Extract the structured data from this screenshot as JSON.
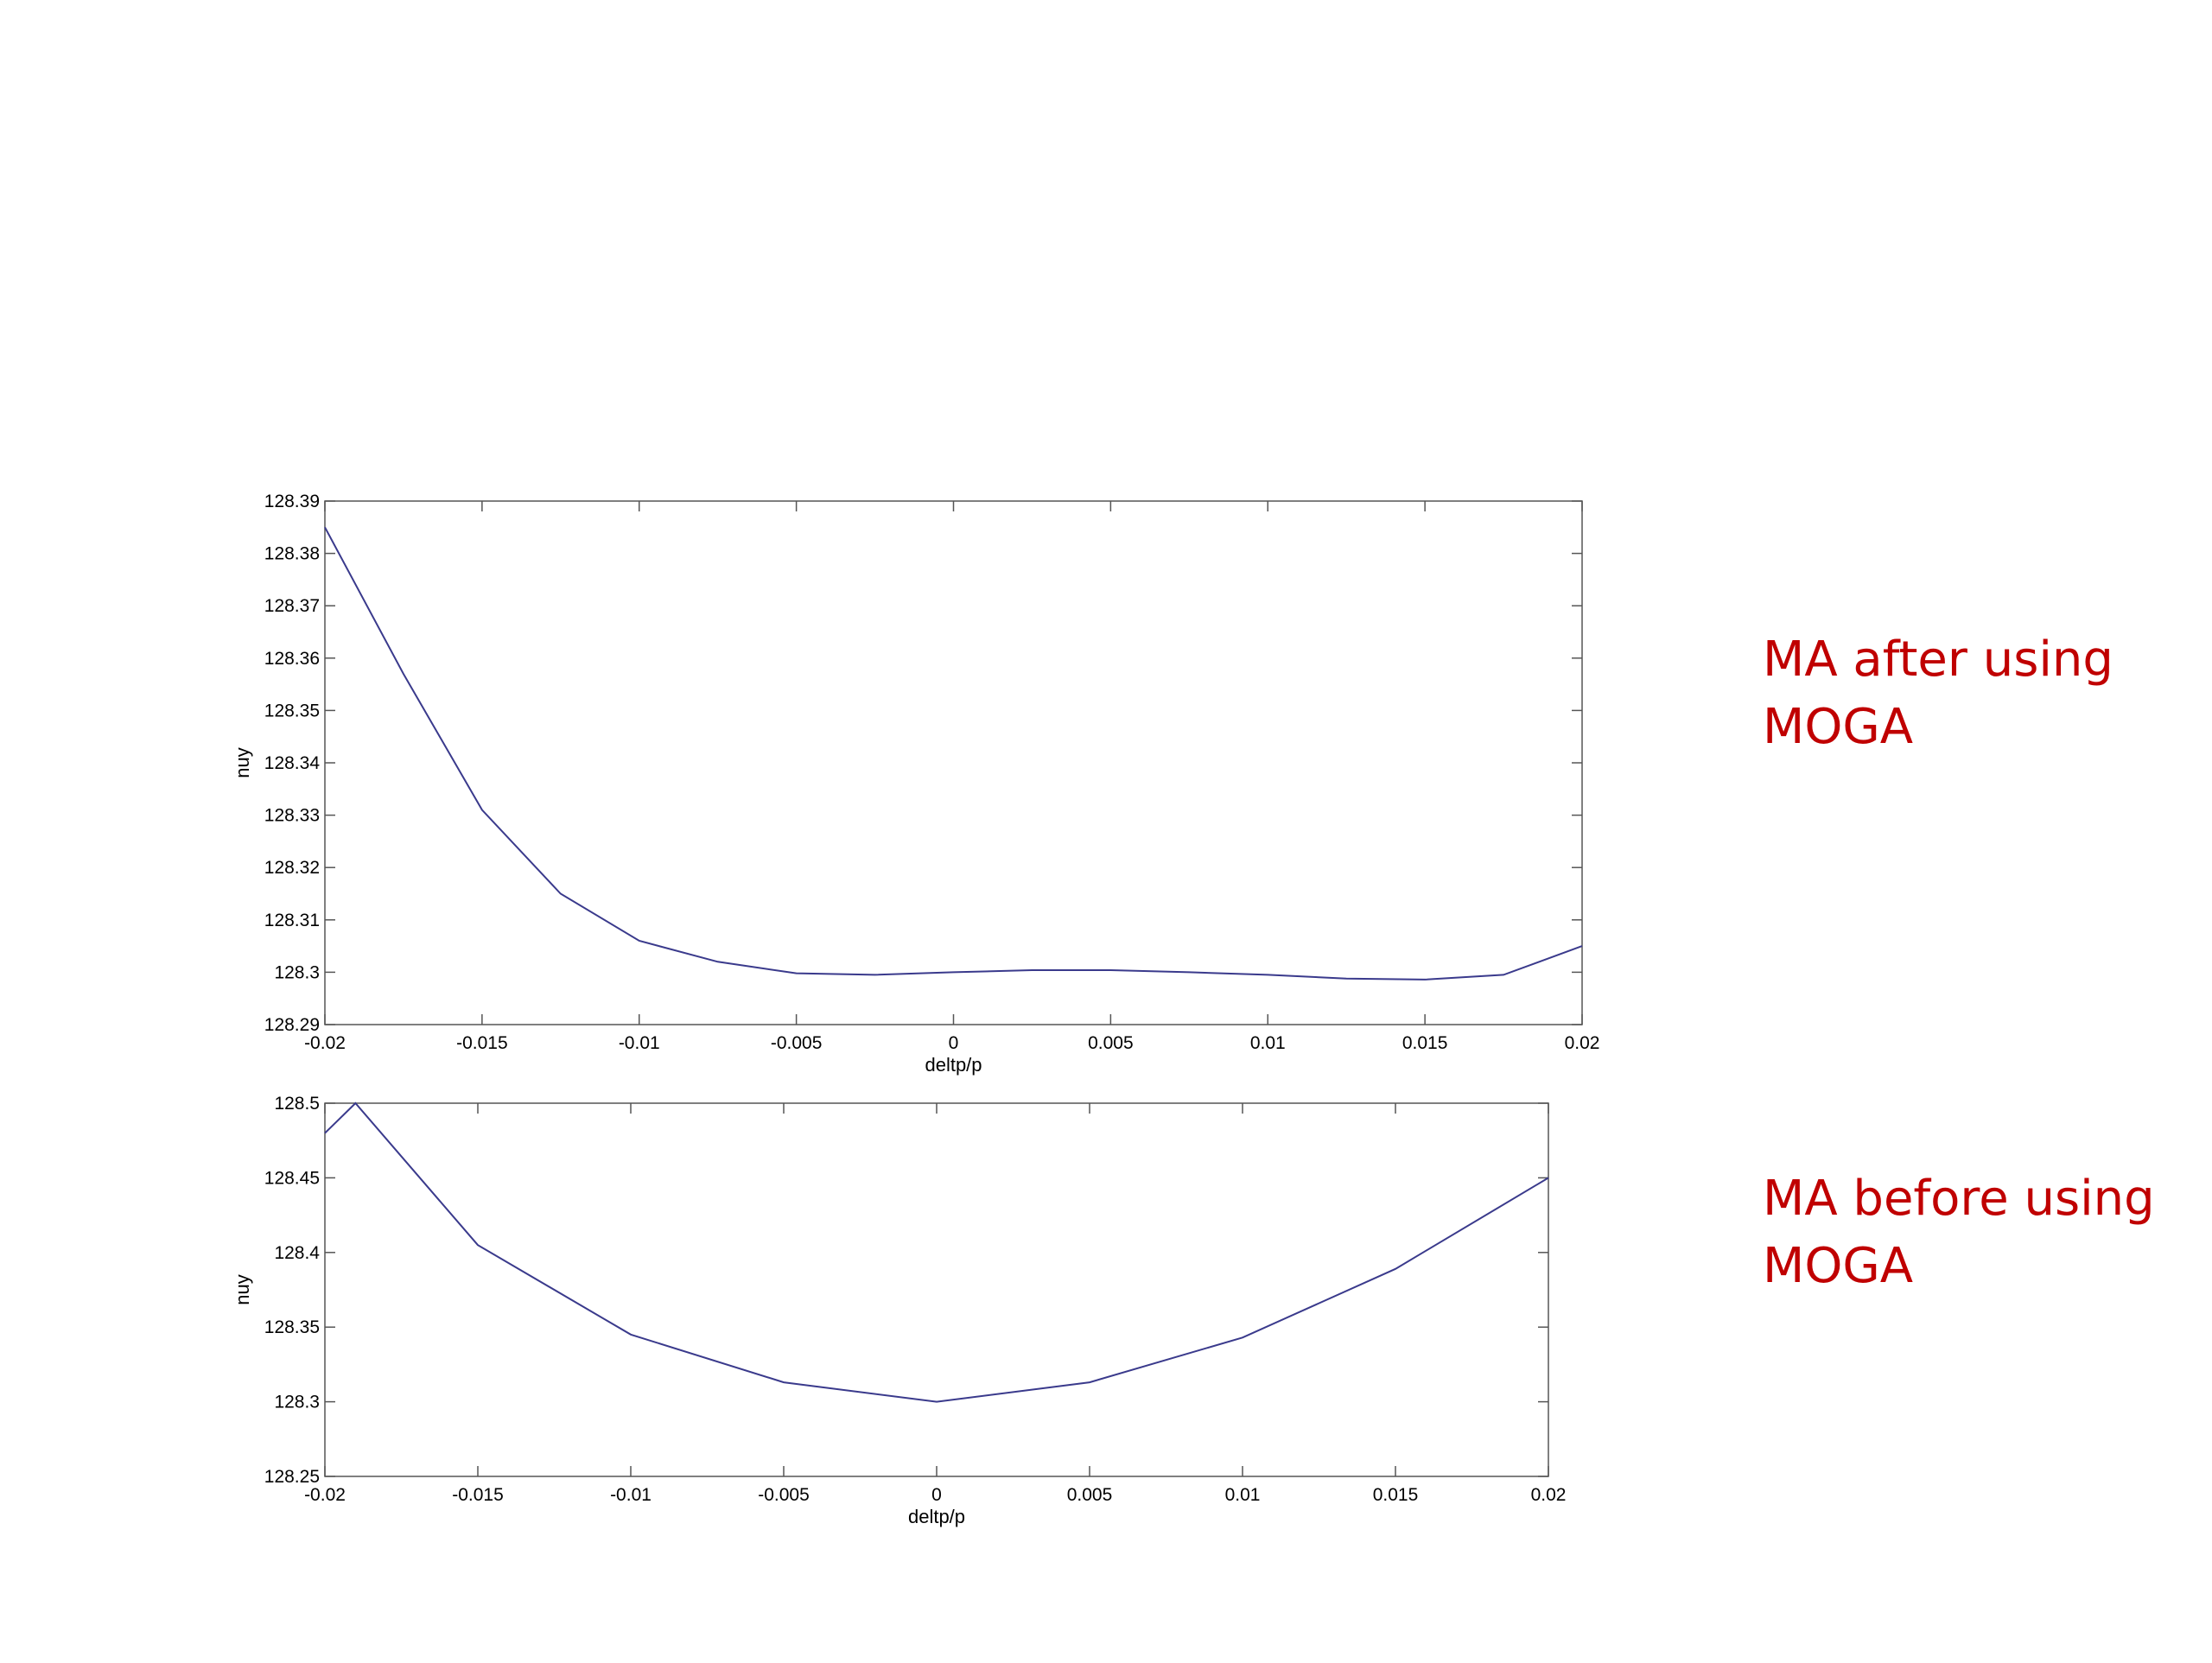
{
  "chart_data": [
    {
      "type": "line",
      "xlabel": "deltp/p",
      "ylabel": "nuy",
      "x": [
        -0.02,
        -0.0175,
        -0.015,
        -0.0125,
        -0.01,
        -0.0075,
        -0.005,
        -0.0025,
        0,
        0.0025,
        0.005,
        0.0075,
        0.01,
        0.0125,
        0.015,
        0.0175,
        0.02
      ],
      "values": [
        128.385,
        128.357,
        128.331,
        128.315,
        128.306,
        128.302,
        128.2998,
        128.2995,
        128.3,
        128.3004,
        128.3004,
        128.3,
        128.2995,
        128.2988,
        128.2986,
        128.2995,
        128.305
      ],
      "color": "#3a3a8c",
      "xlim": [
        -0.02,
        0.02
      ],
      "xticks": [
        -0.02,
        -0.015,
        -0.01,
        -0.005,
        0,
        0.005,
        0.01,
        0.015,
        0.02
      ],
      "ylim": [
        128.29,
        128.39
      ],
      "yticks": [
        128.29,
        128.3,
        128.31,
        128.32,
        128.33,
        128.34,
        128.35,
        128.36,
        128.37,
        128.38,
        128.39
      ],
      "annotation": [
        "MA after using",
        "MOGA"
      ]
    },
    {
      "type": "line",
      "xlabel": "deltp/p",
      "ylabel": "nuy",
      "x": [
        -0.02,
        -0.019,
        -0.015,
        -0.01,
        -0.005,
        0,
        0.005,
        0.01,
        0.015,
        0.02
      ],
      "values": [
        128.48,
        128.5,
        128.405,
        128.345,
        128.313,
        128.3,
        128.313,
        128.343,
        128.389,
        128.45
      ],
      "color": "#3a3a8c",
      "xlim": [
        -0.02,
        0.02
      ],
      "xticks": [
        -0.02,
        -0.015,
        -0.01,
        -0.005,
        0,
        0.005,
        0.01,
        0.015,
        0.02
      ],
      "ylim": [
        128.25,
        128.5
      ],
      "yticks": [
        128.25,
        128.3,
        128.35,
        128.4,
        128.45,
        128.5
      ],
      "annotation": [
        "MA before using",
        "MOGA"
      ]
    }
  ]
}
